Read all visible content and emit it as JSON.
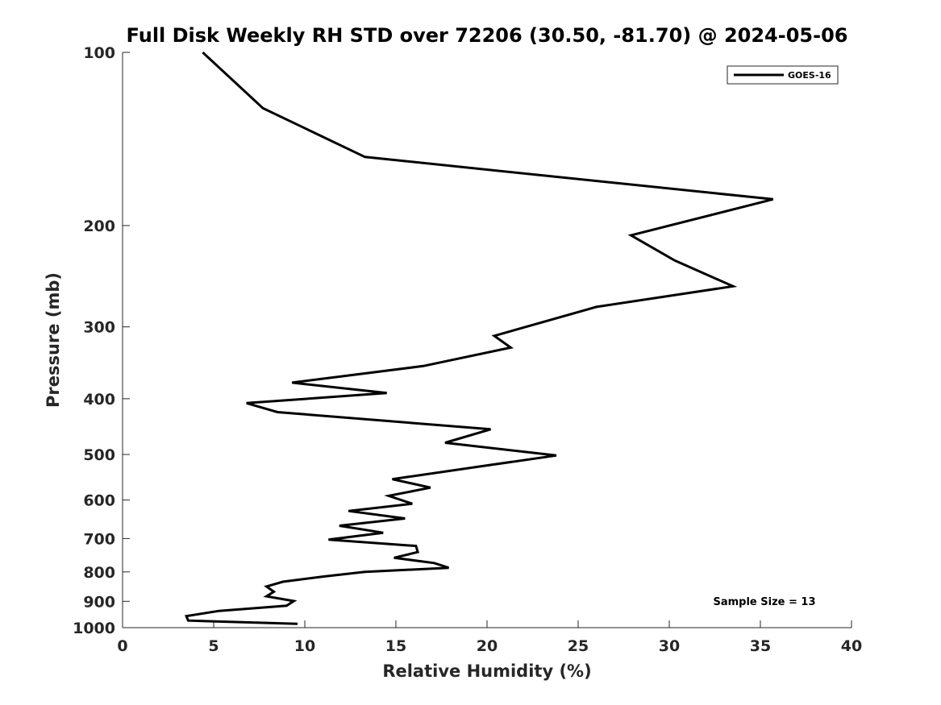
{
  "chart_data": {
    "type": "line",
    "title": "Full Disk Weekly RH STD over 72206 (30.50, -81.70) @ 2024-05-06",
    "xlabel": "Relative Humidity (%)",
    "ylabel": "Pressure (mb)",
    "xlim": [
      0,
      40
    ],
    "ylim": [
      100,
      1000
    ],
    "y_scale": "log",
    "y_reversed": true,
    "grid": false,
    "legend_position": "top-right",
    "x_ticks": [
      "0",
      "5",
      "10",
      "15",
      "20",
      "25",
      "30",
      "35",
      "40"
    ],
    "y_ticks": [
      "100",
      "200",
      "300",
      "400",
      "500",
      "600",
      "700",
      "800",
      "900",
      "1000"
    ],
    "annotation": "Sample Size = 13",
    "series": [
      {
        "name": "GOES-16",
        "color": "#000000",
        "points": [
          [
            4.4,
            100
          ],
          [
            7.7,
            125
          ],
          [
            13.3,
            152
          ],
          [
            35.7,
            180
          ],
          [
            27.9,
            208
          ],
          [
            30.3,
            230
          ],
          [
            33.5,
            255
          ],
          [
            26.0,
            277
          ],
          [
            20.4,
            311
          ],
          [
            21.3,
            326
          ],
          [
            16.5,
            351
          ],
          [
            9.3,
            375
          ],
          [
            14.5,
            391
          ],
          [
            6.8,
            407
          ],
          [
            8.5,
            422
          ],
          [
            20.2,
            452
          ],
          [
            17.7,
            477
          ],
          [
            23.8,
            502
          ],
          [
            19.9,
            523
          ],
          [
            14.8,
            552
          ],
          [
            16.9,
            571
          ],
          [
            14.6,
            590
          ],
          [
            15.9,
            609
          ],
          [
            12.4,
            627
          ],
          [
            15.5,
            646
          ],
          [
            11.9,
            665
          ],
          [
            14.3,
            684
          ],
          [
            11.3,
            703
          ],
          [
            16.1,
            721
          ],
          [
            16.2,
            739
          ],
          [
            14.9,
            756
          ],
          [
            17.1,
            772
          ],
          [
            17.9,
            787
          ],
          [
            13.3,
            800
          ],
          [
            11.0,
            815
          ],
          [
            8.8,
            832
          ],
          [
            7.9,
            848
          ],
          [
            8.3,
            866
          ],
          [
            7.9,
            882
          ],
          [
            9.4,
            899
          ],
          [
            9.0,
            916
          ],
          [
            5.3,
            935
          ],
          [
            3.5,
            955
          ],
          [
            3.6,
            972
          ],
          [
            9.6,
            985
          ]
        ]
      }
    ]
  }
}
